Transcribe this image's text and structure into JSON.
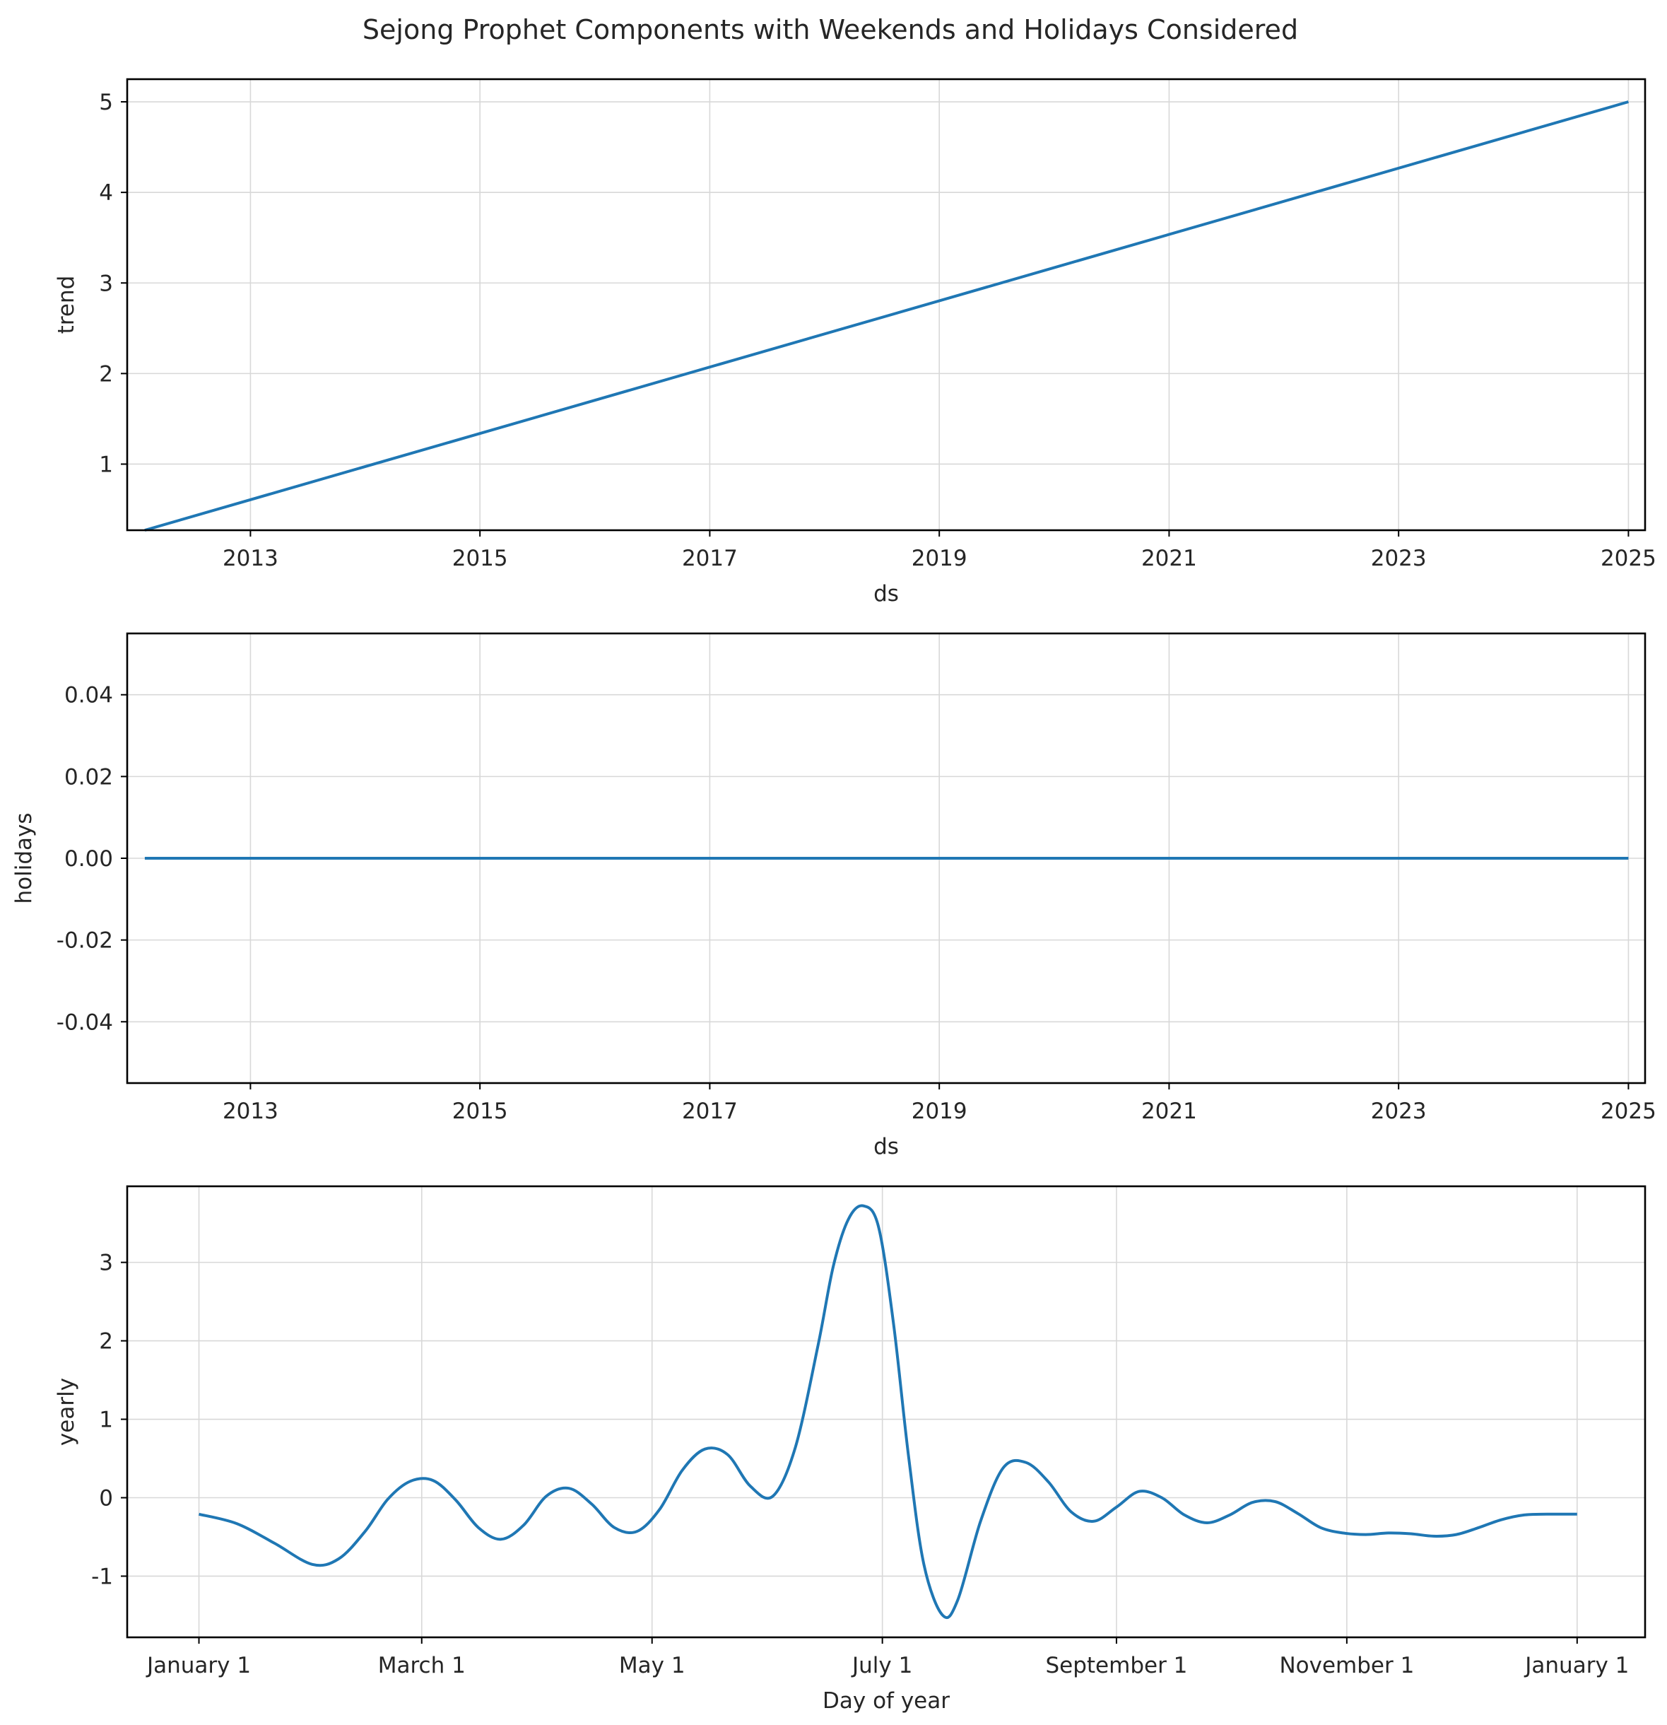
{
  "figure": {
    "title": "Sejong Prophet Components with Weekends and Holidays Considered",
    "line_color": "#1f77b4"
  },
  "chart_data": [
    {
      "type": "line",
      "title": "",
      "xlabel": "ds",
      "ylabel": "trend",
      "x_type": "date",
      "xlim": [
        "2011-12-06",
        "2025-02-23"
      ],
      "ylim": [
        0.27,
        5.25
      ],
      "grid": true,
      "x_ticks": [
        {
          "label": "2013",
          "value": "2013-01-01"
        },
        {
          "label": "2015",
          "value": "2015-01-01"
        },
        {
          "label": "2017",
          "value": "2017-01-01"
        },
        {
          "label": "2019",
          "value": "2019-01-01"
        },
        {
          "label": "2021",
          "value": "2021-01-01"
        },
        {
          "label": "2023",
          "value": "2023-01-01"
        },
        {
          "label": "2025",
          "value": "2025-01-01"
        }
      ],
      "y_ticks": [
        {
          "label": "1",
          "value": 1
        },
        {
          "label": "2",
          "value": 2
        },
        {
          "label": "3",
          "value": 3
        },
        {
          "label": "4",
          "value": 4
        },
        {
          "label": "5",
          "value": 5
        }
      ],
      "series": [
        {
          "x": [
            "2012-01-31",
            "2025-01-01"
          ],
          "y": [
            0.27,
            5.0
          ]
        }
      ]
    },
    {
      "type": "line",
      "title": "",
      "xlabel": "ds",
      "ylabel": "holidays",
      "x_type": "date",
      "xlim": [
        "2011-12-06",
        "2025-02-23"
      ],
      "ylim": [
        -0.055,
        0.055
      ],
      "grid": true,
      "x_ticks": [
        {
          "label": "2013",
          "value": "2013-01-01"
        },
        {
          "label": "2015",
          "value": "2015-01-01"
        },
        {
          "label": "2017",
          "value": "2017-01-01"
        },
        {
          "label": "2019",
          "value": "2019-01-01"
        },
        {
          "label": "2021",
          "value": "2021-01-01"
        },
        {
          "label": "2023",
          "value": "2023-01-01"
        },
        {
          "label": "2025",
          "value": "2025-01-01"
        }
      ],
      "y_ticks": [
        {
          "label": "0.04",
          "value": 0.04
        },
        {
          "label": "0.02",
          "value": 0.02
        },
        {
          "label": "0.00",
          "value": 0.0
        },
        {
          "label": "-0.02",
          "value": -0.02
        },
        {
          "label": "-0.04",
          "value": -0.04
        }
      ],
      "series": [
        {
          "x": [
            "2012-01-31",
            "2025-01-01"
          ],
          "y": [
            0.0,
            0.0
          ]
        }
      ]
    },
    {
      "type": "line",
      "title": "",
      "xlabel": "Day of year",
      "ylabel": "yearly",
      "x_type": "date",
      "xlim": [
        "2016-12-13",
        "2018-01-19"
      ],
      "ylim": [
        -1.78,
        3.97
      ],
      "grid": true,
      "x_ticks": [
        {
          "label": "January 1",
          "value": "2017-01-01"
        },
        {
          "label": "March 1",
          "value": "2017-03-01"
        },
        {
          "label": "May 1",
          "value": "2017-05-01"
        },
        {
          "label": "July 1",
          "value": "2017-07-01"
        },
        {
          "label": "September 1",
          "value": "2017-09-01"
        },
        {
          "label": "November 1",
          "value": "2017-11-01"
        },
        {
          "label": "January 1",
          "value": "2018-01-01"
        }
      ],
      "y_ticks": [
        {
          "label": "-1",
          "value": -1
        },
        {
          "label": "0",
          "value": 0
        },
        {
          "label": "1",
          "value": 1
        },
        {
          "label": "2",
          "value": 2
        },
        {
          "label": "3",
          "value": 3
        }
      ],
      "series": [
        {
          "x": [
            "2017-01-01",
            "2017-01-11",
            "2017-01-21",
            "2017-01-31",
            "2017-02-07",
            "2017-02-14",
            "2017-02-20",
            "2017-02-26",
            "2017-03-04",
            "2017-03-10",
            "2017-03-16",
            "2017-03-22",
            "2017-03-28",
            "2017-04-03",
            "2017-04-09",
            "2017-04-15",
            "2017-04-21",
            "2017-04-27",
            "2017-05-03",
            "2017-05-09",
            "2017-05-15",
            "2017-05-21",
            "2017-05-27",
            "2017-06-02",
            "2017-06-08",
            "2017-06-14",
            "2017-06-18",
            "2017-06-22",
            "2017-06-26",
            "2017-06-30",
            "2017-07-04",
            "2017-07-08",
            "2017-07-12",
            "2017-07-17",
            "2017-07-21",
            "2017-07-27",
            "2017-08-02",
            "2017-08-08",
            "2017-08-14",
            "2017-08-20",
            "2017-08-26",
            "2017-09-01",
            "2017-09-07",
            "2017-09-13",
            "2017-09-19",
            "2017-09-25",
            "2017-10-01",
            "2017-10-07",
            "2017-10-13",
            "2017-10-19",
            "2017-10-25",
            "2017-10-31",
            "2017-11-06",
            "2017-11-12",
            "2017-11-18",
            "2017-11-24",
            "2017-11-30",
            "2017-12-06",
            "2017-12-12",
            "2017-12-18",
            "2017-12-24",
            "2018-01-01"
          ],
          "y": [
            -0.21,
            -0.33,
            -0.58,
            -0.85,
            -0.78,
            -0.43,
            -0.02,
            0.21,
            0.22,
            -0.03,
            -0.38,
            -0.53,
            -0.35,
            0.02,
            0.12,
            -0.08,
            -0.38,
            -0.43,
            -0.15,
            0.35,
            0.62,
            0.55,
            0.15,
            0.02,
            0.65,
            1.95,
            2.95,
            3.55,
            3.72,
            3.45,
            2.2,
            0.5,
            -0.85,
            -1.5,
            -1.3,
            -0.3,
            0.38,
            0.45,
            0.2,
            -0.18,
            -0.3,
            -0.12,
            0.08,
            0.0,
            -0.22,
            -0.32,
            -0.22,
            -0.06,
            -0.05,
            -0.2,
            -0.38,
            -0.45,
            -0.47,
            -0.45,
            -0.46,
            -0.49,
            -0.47,
            -0.38,
            -0.28,
            -0.22,
            -0.21,
            -0.21
          ]
        }
      ]
    }
  ]
}
